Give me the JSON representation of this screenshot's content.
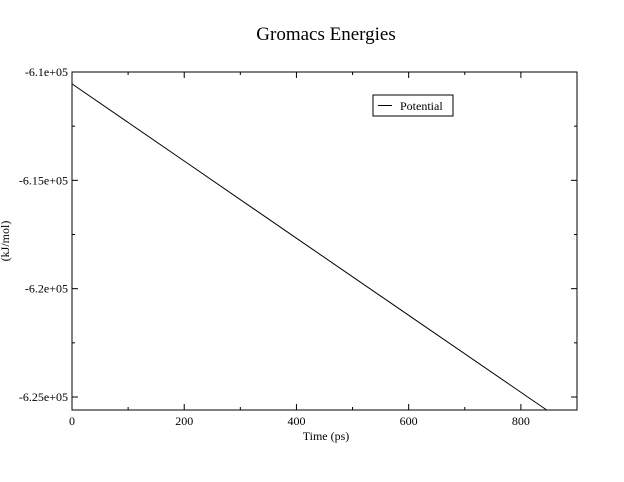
{
  "chart_data": {
    "type": "line",
    "title": "Gromacs Energies",
    "xlabel": "Time (ps)",
    "ylabel": "(kJ/mol)",
    "xlim": [
      0,
      900
    ],
    "ylim": [
      -625600,
      -610000
    ],
    "x_ticks": [
      0,
      200,
      400,
      600,
      800
    ],
    "x_tick_labels": [
      "0",
      "200",
      "400",
      "600",
      "800"
    ],
    "y_ticks": [
      -610000,
      -615000,
      -620000,
      -625000
    ],
    "y_tick_labels": [
      "-6.1e+05",
      "-6.15e+05",
      "-6.2e+05",
      "-6.25e+05"
    ],
    "grid": false,
    "legend_position": "top-right",
    "series": [
      {
        "name": "Potential",
        "color": "#000000",
        "x": [
          0,
          200,
          400,
          600,
          846
        ],
        "y": [
          -610550,
          -614110,
          -617670,
          -621230,
          -625600
        ]
      }
    ]
  }
}
